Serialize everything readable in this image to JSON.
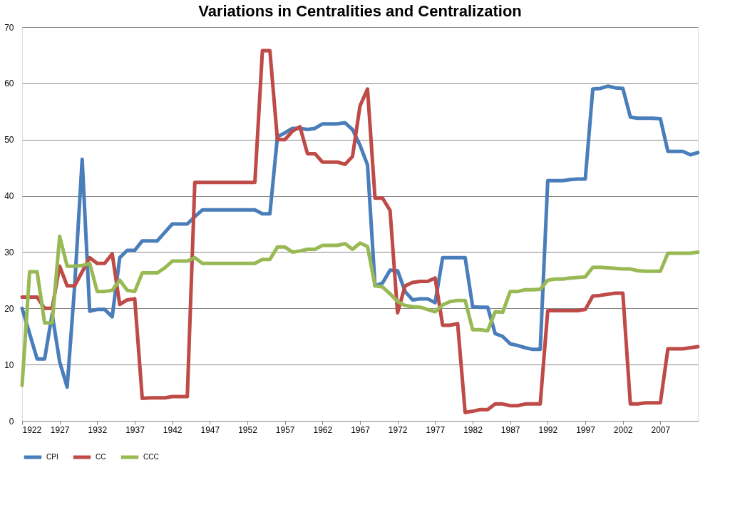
{
  "chart_data": {
    "type": "line",
    "title": "Variations in Centralities and Centralization",
    "x": [
      1922,
      1923,
      1924,
      1925,
      1926,
      1927,
      1928,
      1929,
      1930,
      1931,
      1932,
      1933,
      1934,
      1935,
      1936,
      1937,
      1938,
      1939,
      1940,
      1941,
      1942,
      1943,
      1944,
      1945,
      1946,
      1947,
      1948,
      1949,
      1950,
      1951,
      1952,
      1953,
      1954,
      1955,
      1956,
      1957,
      1958,
      1959,
      1960,
      1961,
      1962,
      1963,
      1964,
      1965,
      1966,
      1967,
      1968,
      1969,
      1970,
      1971,
      1972,
      1973,
      1974,
      1975,
      1976,
      1977,
      1978,
      1979,
      1980,
      1981,
      1982,
      1983,
      1984,
      1985,
      1986,
      1987,
      1988,
      1989,
      1990,
      1991,
      1992,
      1993,
      1994,
      1995,
      1996,
      1997,
      1998,
      1999,
      2000,
      2001,
      2002,
      2003,
      2004,
      2005,
      2006,
      2007,
      2008,
      2009,
      2010,
      2011,
      2012
    ],
    "series": [
      {
        "name": "CPI",
        "color": "#4a7ebb",
        "values": [
          20,
          15.5,
          11,
          11,
          19,
          10.5,
          6,
          24,
          46.5,
          19.5,
          19.8,
          19.8,
          18.5,
          29,
          30.3,
          30.3,
          32,
          32,
          32,
          33.5,
          35,
          35,
          35,
          36.3,
          37.5,
          37.5,
          37.5,
          37.5,
          37.5,
          37.5,
          37.5,
          37.5,
          36.8,
          36.8,
          50.5,
          51.2,
          52,
          52,
          51.8,
          52,
          52.8,
          52.8,
          52.8,
          53,
          51.8,
          49,
          45.5,
          24,
          24.5,
          26.8,
          26.7,
          23,
          21.5,
          21.7,
          21.7,
          21,
          29,
          29,
          29,
          29,
          20.3,
          20.2,
          20.2,
          15.5,
          15,
          13.7,
          13.4,
          13,
          12.7,
          12.7,
          42.7,
          42.7,
          42.7,
          42.9,
          43,
          43,
          59,
          59.1,
          59.5,
          59.2,
          59.1,
          54,
          53.8,
          53.8,
          53.8,
          53.7,
          47.9,
          47.9,
          47.9,
          47.3,
          47.7
        ]
      },
      {
        "name": "CC",
        "color": "#be4b48",
        "values": [
          22,
          22,
          22,
          20,
          20,
          27.5,
          24,
          24,
          26.5,
          29,
          28,
          28,
          29.7,
          20.7,
          21.5,
          21.7,
          4,
          4.1,
          4.1,
          4.1,
          4.3,
          4.3,
          4.3,
          42.4,
          42.4,
          42.4,
          42.4,
          42.4,
          42.4,
          42.4,
          42.4,
          42.4,
          65.8,
          65.8,
          50,
          50,
          51.5,
          52.3,
          47.5,
          47.5,
          46,
          46,
          46,
          45.6,
          47,
          56,
          59,
          39.6,
          39.6,
          37.4,
          19.2,
          24,
          24.6,
          24.8,
          24.8,
          25.4,
          17,
          17,
          17.3,
          1.5,
          1.7,
          2,
          2,
          3,
          3,
          2.7,
          2.7,
          3,
          3,
          3,
          19.6,
          19.6,
          19.6,
          19.6,
          19.6,
          19.8,
          22.2,
          22.3,
          22.5,
          22.7,
          22.7,
          3,
          3,
          3.2,
          3.2,
          3.2,
          12.8,
          12.8,
          12.8,
          13,
          13.2
        ]
      },
      {
        "name": "CCC",
        "color": "#98b954",
        "values": [
          6.3,
          26.5,
          26.5,
          17.4,
          17.4,
          32.8,
          27.5,
          27.5,
          27.6,
          28,
          23,
          23,
          23.2,
          25,
          23.2,
          23,
          26.3,
          26.3,
          26.3,
          27.2,
          28.4,
          28.4,
          28.4,
          29,
          28,
          28,
          28,
          28,
          28,
          28,
          28,
          28,
          28.7,
          28.7,
          30.9,
          30.9,
          30,
          30.2,
          30.5,
          30.5,
          31.2,
          31.2,
          31.2,
          31.5,
          30.5,
          31.6,
          31,
          24,
          23.8,
          22.6,
          21.2,
          20.5,
          20.3,
          20.2,
          19.8,
          19.4,
          20.6,
          21.2,
          21.4,
          21.4,
          16.2,
          16.2,
          16,
          19.4,
          19.3,
          23,
          23,
          23.3,
          23.3,
          23.4,
          25,
          25.2,
          25.2,
          25.4,
          25.5,
          25.6,
          27.3,
          27.3,
          27.2,
          27.1,
          27,
          27,
          26.7,
          26.6,
          26.6,
          26.6,
          29.8,
          29.8,
          29.8,
          29.8,
          30
        ]
      }
    ],
    "xlim": [
      1922,
      2012
    ],
    "xticks": [
      1922,
      1927,
      1932,
      1937,
      1942,
      1947,
      1952,
      1957,
      1962,
      1967,
      1972,
      1977,
      1982,
      1987,
      1992,
      1997,
      2002,
      2007
    ],
    "ylim": [
      0,
      70
    ],
    "yticks": [
      0,
      10,
      20,
      30,
      40,
      50,
      60,
      70
    ],
    "grid": "y",
    "legend": "bottom",
    "marker": "none",
    "line_style": "solid"
  }
}
